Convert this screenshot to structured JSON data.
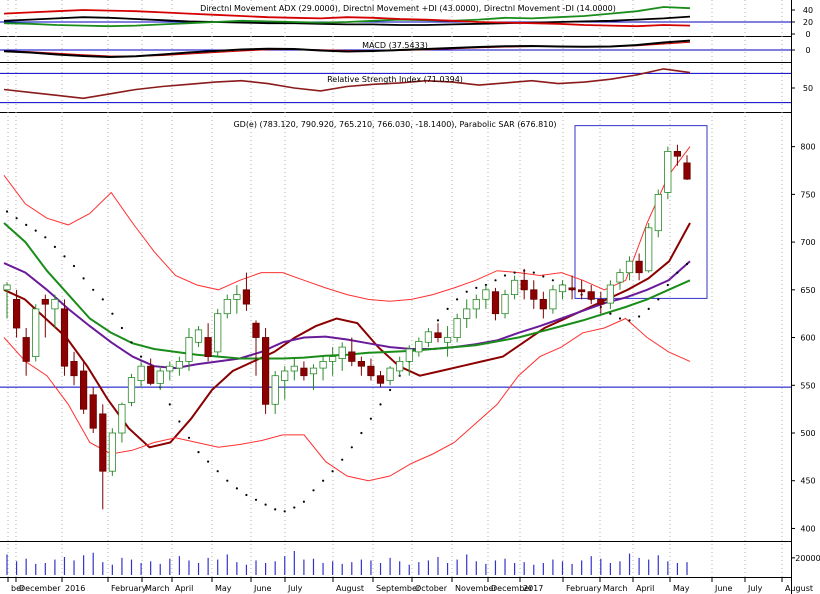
{
  "chart_data": [
    {
      "panel": "dmi",
      "type": "line",
      "title": "Directnl Movement ADX (29.0000), Directnl Movement +DI (43.0000), Directnl Movement -DI (14.0000)",
      "yticks": [
        40,
        20,
        0
      ],
      "ylim": [
        0,
        50
      ],
      "series": [
        {
          "name": "Directnl Movement ADX",
          "color": "#000000",
          "values": [
            22,
            24,
            26,
            28,
            27,
            25,
            23,
            21,
            20,
            19,
            18,
            18,
            17,
            16,
            16,
            15,
            15,
            16,
            17,
            18,
            19,
            20,
            21,
            22,
            24,
            26,
            29
          ]
        },
        {
          "name": "Directnl Movement +DI",
          "color": "#1a8c1a",
          "values": [
            18,
            17,
            15,
            14,
            13,
            14,
            16,
            18,
            20,
            22,
            21,
            20,
            19,
            20,
            22,
            24,
            23,
            22,
            24,
            27,
            26,
            28,
            30,
            34,
            38,
            45,
            43
          ]
        },
        {
          "name": "Directnl Movement -DI",
          "color": "#d40000",
          "values": [
            34,
            36,
            38,
            40,
            39,
            38,
            36,
            34,
            32,
            30,
            28,
            27,
            26,
            28,
            27,
            25,
            24,
            22,
            20,
            19,
            18,
            17,
            15,
            14,
            13,
            15,
            14
          ]
        }
      ]
    },
    {
      "panel": "macd",
      "type": "line",
      "title": "MACD (37.5433)",
      "yticks": [
        0
      ],
      "ylim": [
        -40,
        40
      ],
      "series": [
        {
          "name": "MACD",
          "color": "#000000",
          "values": [
            -5,
            -10,
            -18,
            -24,
            -28,
            -25,
            -18,
            -10,
            -4,
            2,
            5,
            4,
            -2,
            -6,
            -4,
            0,
            4,
            8,
            12,
            15,
            16,
            14,
            13,
            14,
            20,
            30,
            37.5
          ]
        },
        {
          "name": "Signal",
          "color": "#d40000",
          "values": [
            -3,
            -7,
            -13,
            -19,
            -24,
            -25,
            -22,
            -16,
            -10,
            -4,
            1,
            3,
            1,
            -2,
            -4,
            -2,
            1,
            5,
            9,
            12,
            14,
            14,
            14,
            14,
            17,
            24,
            31
          ]
        }
      ]
    },
    {
      "panel": "rsi",
      "type": "line",
      "title": "Relative Strength Index (71.0394)",
      "yticks": [
        50
      ],
      "ylim": [
        20,
        80
      ],
      "series": [
        {
          "name": "Relative Strength Index",
          "color": "#8b1a1a",
          "values": [
            48,
            44,
            40,
            36,
            42,
            48,
            52,
            55,
            58,
            60,
            56,
            50,
            46,
            52,
            55,
            57,
            60,
            58,
            54,
            57,
            60,
            56,
            58,
            62,
            68,
            76,
            71
          ]
        }
      ]
    },
    {
      "panel": "price",
      "type": "candlestick",
      "title": "GD(e) (783.120, 790.920, 765.210, 766.030, -18.1400), Parabolic SAR (676.810)",
      "yticks": [
        800,
        750,
        700,
        650,
        600,
        550,
        500,
        450,
        400
      ],
      "ylim": [
        390,
        830
      ],
      "xlabels": [
        "ber",
        "December",
        "2016",
        "February",
        "March",
        "April",
        "May",
        "June",
        "July",
        "August",
        "September",
        "October",
        "November",
        "December",
        "2017",
        "February",
        "March",
        "April",
        "May",
        "June",
        "July",
        "August"
      ],
      "candles": [
        [
          650,
          658,
          620,
          655
        ],
        [
          640,
          650,
          600,
          610
        ],
        [
          600,
          610,
          560,
          575
        ],
        [
          580,
          635,
          575,
          630
        ],
        [
          640,
          645,
          600,
          635
        ],
        [
          630,
          645,
          610,
          640
        ],
        [
          630,
          640,
          560,
          570
        ],
        [
          575,
          585,
          550,
          560
        ],
        [
          565,
          575,
          520,
          525
        ],
        [
          540,
          548,
          500,
          505
        ],
        [
          520,
          530,
          420,
          460
        ],
        [
          460,
          505,
          455,
          500
        ],
        [
          500,
          532,
          490,
          530
        ],
        [
          532,
          562,
          528,
          558
        ],
        [
          555,
          575,
          548,
          570
        ],
        [
          570,
          578,
          550,
          552
        ],
        [
          552,
          570,
          545,
          565
        ],
        [
          565,
          575,
          555,
          570
        ],
        [
          568,
          580,
          560,
          575
        ],
        [
          575,
          610,
          565,
          600
        ],
        [
          595,
          612,
          590,
          608
        ],
        [
          600,
          615,
          575,
          580
        ],
        [
          585,
          630,
          580,
          625
        ],
        [
          625,
          645,
          620,
          640
        ],
        [
          640,
          655,
          625,
          645
        ],
        [
          650,
          668,
          628,
          635
        ],
        [
          615,
          618,
          560,
          600
        ],
        [
          600,
          610,
          520,
          530
        ],
        [
          530,
          565,
          520,
          560
        ],
        [
          555,
          570,
          535,
          565
        ],
        [
          565,
          578,
          555,
          570
        ],
        [
          568,
          575,
          555,
          560
        ],
        [
          562,
          572,
          545,
          568
        ],
        [
          568,
          580,
          555,
          575
        ],
        [
          575,
          590,
          560,
          580
        ],
        [
          578,
          595,
          565,
          590
        ],
        [
          585,
          600,
          570,
          575
        ],
        [
          575,
          580,
          560,
          570
        ],
        [
          570,
          578,
          555,
          560
        ],
        [
          560,
          565,
          548,
          552
        ],
        [
          555,
          570,
          550,
          568
        ],
        [
          565,
          580,
          560,
          575
        ],
        [
          575,
          592,
          560,
          588
        ],
        [
          585,
          600,
          580,
          596
        ],
        [
          595,
          610,
          590,
          606
        ],
        [
          605,
          615,
          595,
          600
        ],
        [
          595,
          612,
          580,
          600
        ],
        [
          600,
          625,
          595,
          620
        ],
        [
          620,
          640,
          610,
          630
        ],
        [
          630,
          645,
          620,
          640
        ],
        [
          640,
          655,
          630,
          650
        ],
        [
          648,
          652,
          618,
          625
        ],
        [
          625,
          650,
          620,
          645
        ],
        [
          645,
          665,
          640,
          660
        ],
        [
          660,
          672,
          640,
          650
        ],
        [
          650,
          660,
          630,
          640
        ],
        [
          640,
          648,
          620,
          630
        ],
        [
          630,
          655,
          625,
          650
        ],
        [
          648,
          660,
          640,
          655
        ],
        [
          652,
          665,
          640,
          650
        ],
        [
          650,
          660,
          640,
          648
        ],
        [
          648,
          655,
          635,
          640
        ],
        [
          640,
          648,
          625,
          635
        ],
        [
          636,
          660,
          630,
          655
        ],
        [
          658,
          672,
          650,
          668
        ],
        [
          668,
          685,
          660,
          680
        ],
        [
          680,
          688,
          660,
          668
        ],
        [
          670,
          720,
          668,
          715
        ],
        [
          712,
          755,
          705,
          750
        ],
        [
          752,
          800,
          745,
          795
        ],
        [
          795,
          802,
          780,
          790
        ],
        [
          783,
          791,
          765,
          766
        ]
      ],
      "overlays": [
        {
          "name": "Moving Average (short)",
          "color": "#8b0000",
          "values": [
            650,
            640,
            620,
            600,
            570,
            535,
            505,
            485,
            490,
            515,
            545,
            565,
            575,
            585,
            600,
            612,
            620,
            615,
            590,
            570,
            560,
            565,
            570,
            575,
            580,
            595,
            610,
            620,
            630,
            640,
            650,
            662,
            680,
            720
          ]
        },
        {
          "name": "Moving Average (mid)",
          "color": "#6a1b9a",
          "values": [
            678,
            668,
            650,
            630,
            612,
            595,
            580,
            570,
            568,
            572,
            575,
            578,
            585,
            595,
            600,
            601,
            598,
            594,
            590,
            588,
            588,
            590,
            593,
            597,
            605,
            612,
            620,
            628,
            636,
            642,
            650,
            660,
            680
          ]
        },
        {
          "name": "Moving Average (long)",
          "color": "#1a8c1a",
          "values": [
            720,
            700,
            670,
            645,
            620,
            605,
            594,
            588,
            585,
            582,
            580,
            578,
            578,
            578,
            579,
            581,
            582,
            584,
            585,
            586,
            588,
            590,
            592,
            596,
            600,
            606,
            612,
            618,
            625,
            632,
            640,
            650,
            660
          ]
        },
        {
          "name": "Bollinger Upper",
          "color": "#ff3030",
          "values": [
            770,
            740,
            725,
            718,
            730,
            752,
            720,
            690,
            665,
            655,
            650,
            660,
            668,
            668,
            660,
            652,
            645,
            640,
            638,
            640,
            645,
            652,
            660,
            670,
            668,
            665,
            668,
            660,
            650,
            660,
            720,
            770,
            800
          ]
        },
        {
          "name": "Bollinger Lower",
          "color": "#ff3030",
          "values": [
            600,
            575,
            560,
            530,
            490,
            478,
            482,
            490,
            495,
            490,
            485,
            488,
            492,
            498,
            498,
            470,
            455,
            450,
            455,
            468,
            478,
            490,
            510,
            530,
            560,
            580,
            590,
            605,
            610,
            620,
            600,
            585,
            575
          ]
        }
      ],
      "sar": [
        732,
        725,
        718,
        712,
        705,
        695,
        685,
        675,
        662,
        650,
        640,
        625,
        610,
        595,
        580,
        565,
        548,
        530,
        512,
        495,
        480,
        470,
        460,
        450,
        442,
        435,
        430,
        425,
        420,
        418,
        422,
        428,
        440,
        450,
        460,
        472,
        485,
        500,
        515,
        530,
        545,
        560,
        575,
        590,
        605,
        618,
        630,
        640,
        648,
        652,
        655,
        660,
        665,
        668,
        670,
        668,
        664,
        660,
        655,
        650,
        645,
        640,
        632,
        625,
        620,
        618,
        622,
        630,
        640,
        655,
        668,
        677
      ],
      "annotations": {
        "horizontal_line": 548
      }
    },
    {
      "panel": "volume",
      "type": "bar",
      "yticks": [
        "20000"
      ],
      "ylim": [
        0,
        35000
      ],
      "values": [
        24000,
        16000,
        19000,
        13000,
        14000,
        18000,
        21000,
        17000,
        23000,
        26000,
        15000,
        12000,
        20000,
        18000,
        14000,
        16000,
        13000,
        19000,
        22000,
        17000,
        14000,
        20000,
        18000,
        24000,
        15000,
        12000,
        17000,
        14000,
        16000,
        22000,
        28000,
        18000,
        19000,
        14000,
        16000,
        13000,
        15000,
        18000,
        17000,
        14000,
        20000,
        16000,
        12000,
        15000,
        17000,
        21000,
        14000,
        18000,
        24000,
        16000,
        13000,
        17000,
        19000,
        14000,
        15000,
        12000,
        14000,
        18000,
        16000,
        13000,
        17000,
        22000,
        19000,
        14000,
        16000,
        25000,
        20000,
        18000,
        23000,
        16000,
        14000,
        15000
      ]
    }
  ]
}
